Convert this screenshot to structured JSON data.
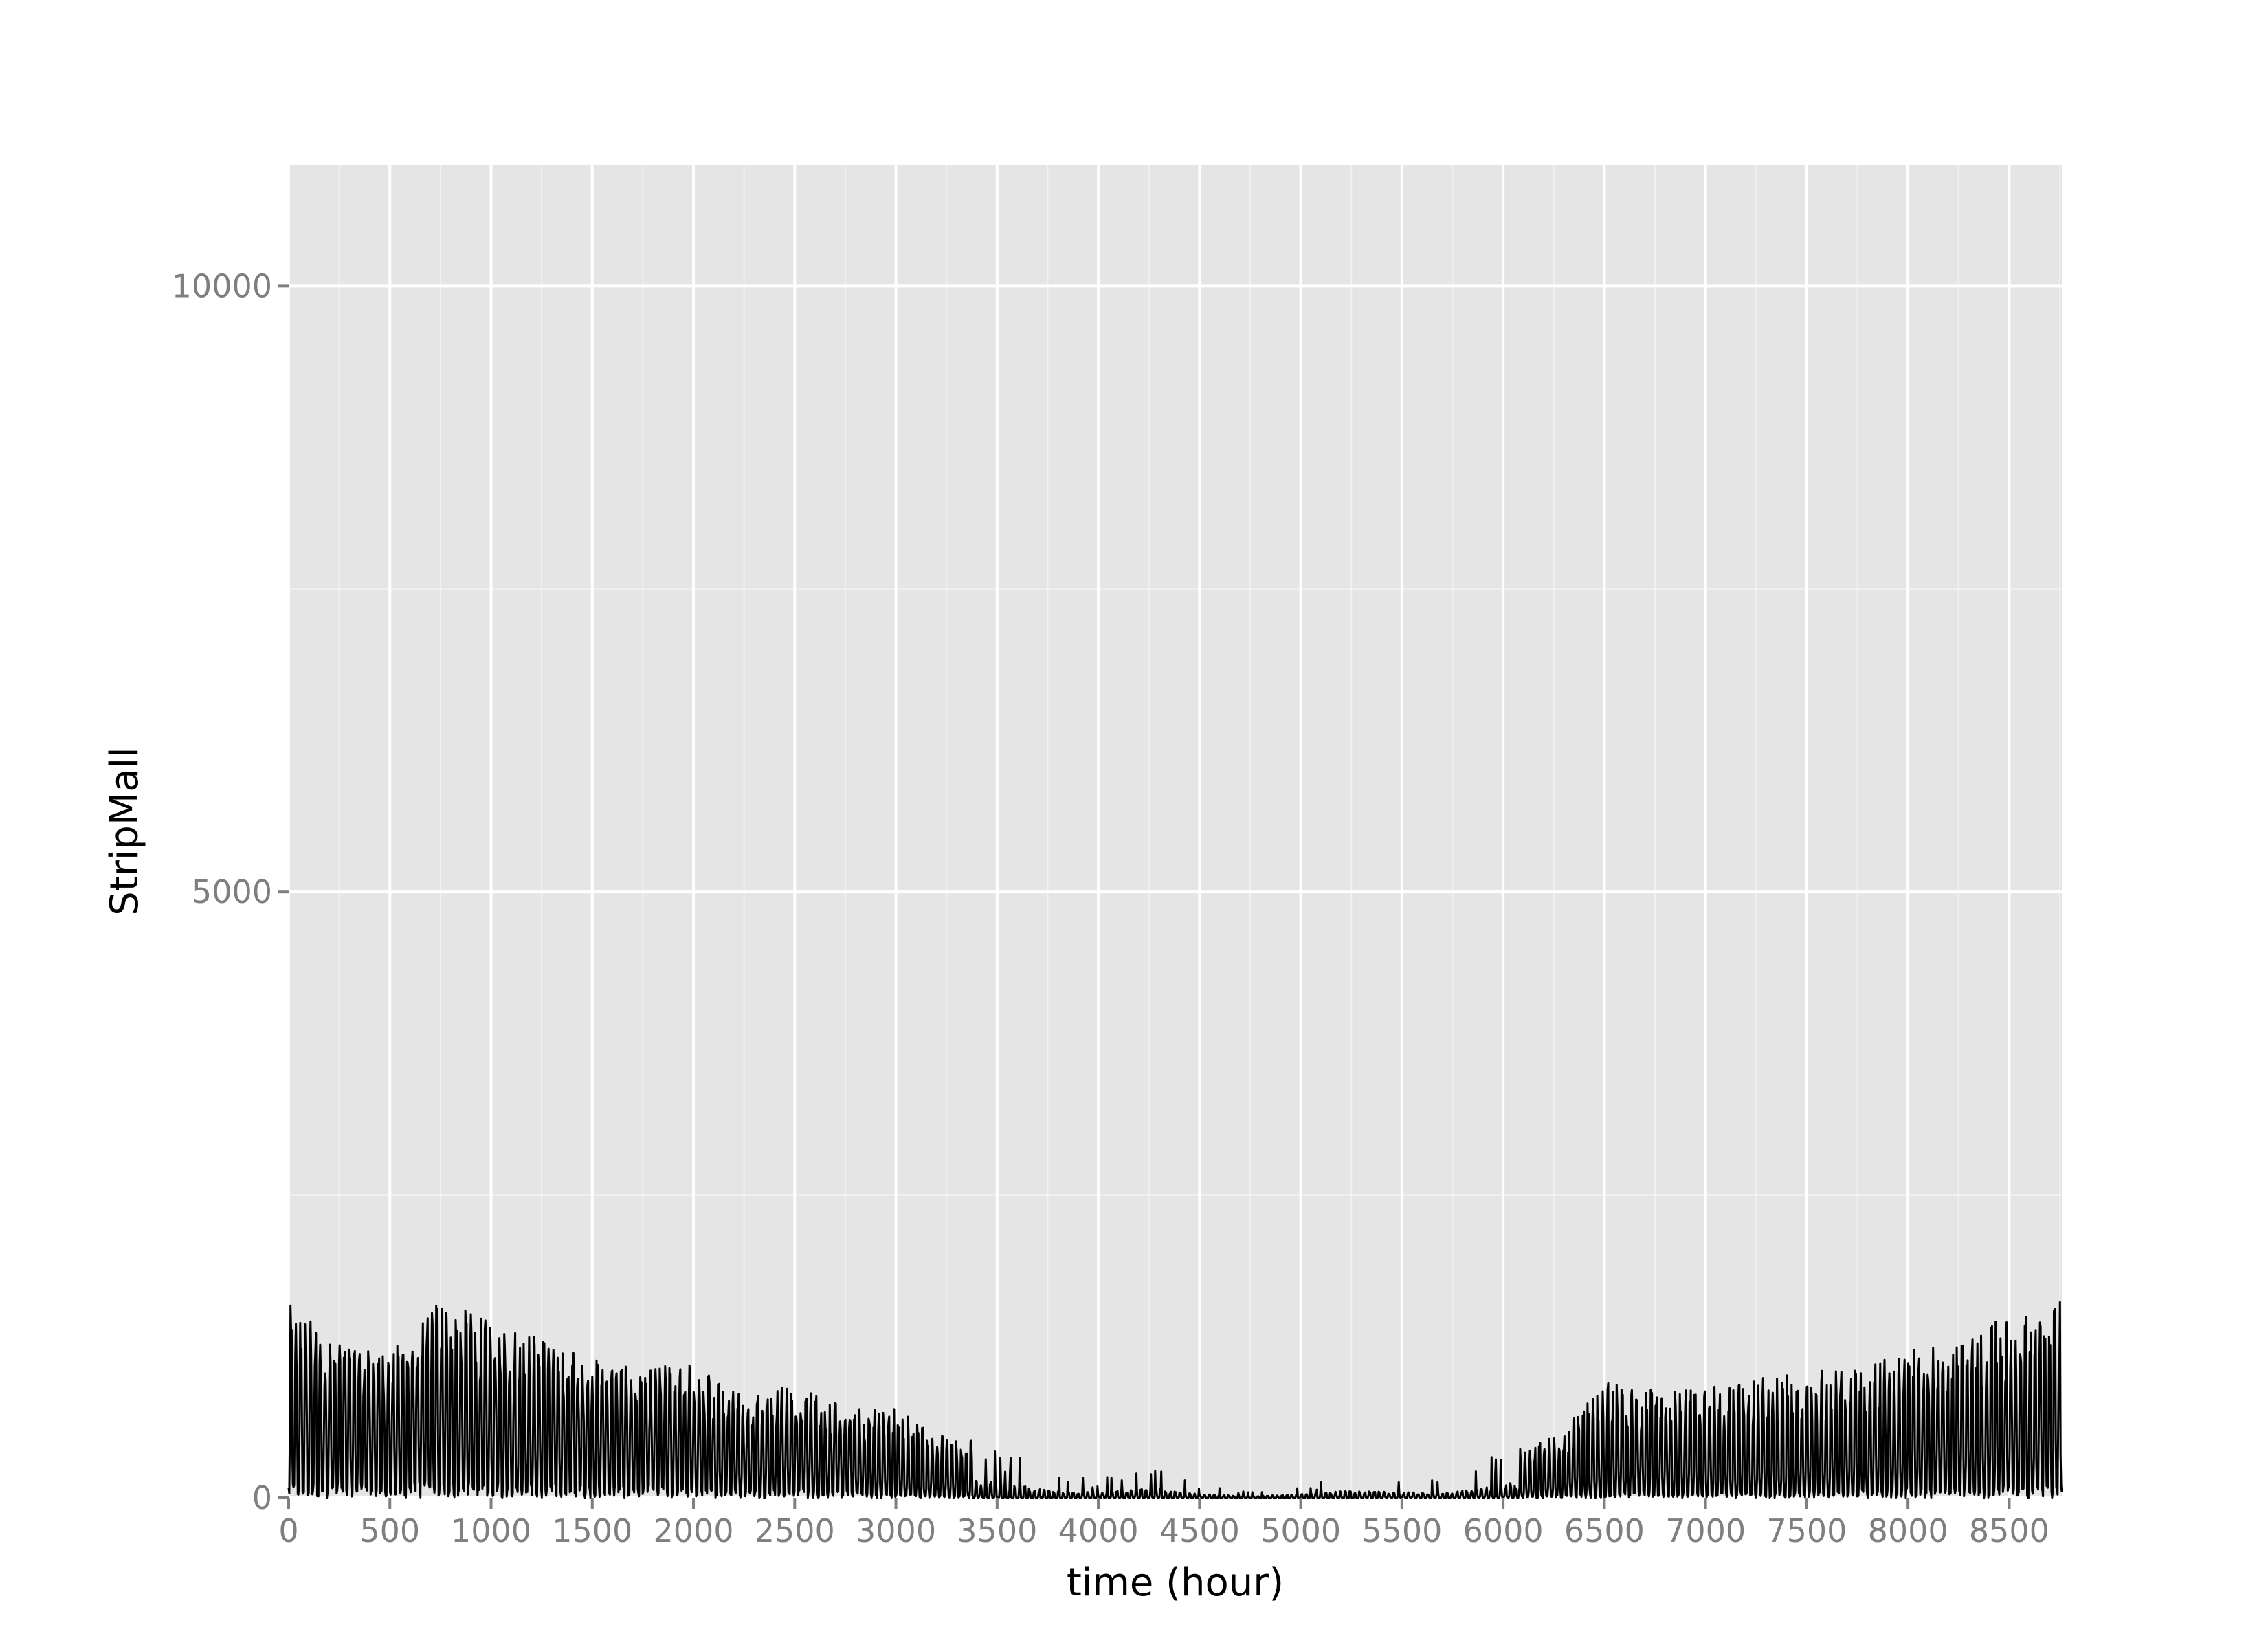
{
  "chart_data": {
    "type": "line",
    "title": "",
    "xlabel": "time (hour)",
    "ylabel": "StripMall",
    "xlim": [
      0,
      8760
    ],
    "ylim": [
      0,
      11000
    ],
    "x_ticks": [
      0,
      500,
      1000,
      1500,
      2000,
      2500,
      3000,
      3500,
      4000,
      4500,
      5000,
      5500,
      6000,
      6500,
      7000,
      7500,
      8000,
      8500
    ],
    "x_tick_labels": [
      "0",
      "500",
      "1000",
      "1500",
      "2000",
      "2500",
      "3000",
      "3500",
      "4000",
      "4500",
      "5000",
      "5500",
      "6000",
      "6500",
      "7000",
      "7500",
      "8000",
      "8500"
    ],
    "y_ticks": [
      0,
      5000,
      10000
    ],
    "y_tick_labels": [
      "0",
      "5000",
      "10000"
    ],
    "grid": true,
    "series": [
      {
        "color": "#000000",
        "x": [
          0,
          250,
          500,
          750,
          1000,
          1250,
          1500,
          1750,
          2000,
          2250,
          2500,
          2750,
          3000,
          3250,
          3500,
          3750,
          4000,
          4250,
          4500,
          4750,
          5000,
          5250,
          5500,
          5750,
          6000,
          6250,
          6500,
          6750,
          7000,
          7250,
          7500,
          7750,
          8000,
          8250,
          8500,
          8750
        ],
        "y_typical": [
          500,
          520,
          480,
          600,
          500,
          450,
          480,
          420,
          350,
          300,
          320,
          250,
          150,
          100,
          20,
          10,
          15,
          20,
          10,
          5,
          5,
          10,
          20,
          10,
          50,
          80,
          200,
          250,
          180,
          180,
          200,
          260,
          320,
          380,
          450,
          500
        ],
        "y_peak": [
          1600,
          1300,
          1200,
          1650,
          1450,
          1350,
          1150,
          1050,
          1150,
          850,
          950,
          750,
          750,
          500,
          480,
          200,
          150,
          300,
          100,
          50,
          100,
          200,
          150,
          150,
          400,
          500,
          950,
          900,
          900,
          1000,
          1050,
          1050,
          1250,
          1250,
          1550,
          1650
        ]
      }
    ],
    "background": "#e5e5e5",
    "gridline_color": "#ffffff"
  }
}
